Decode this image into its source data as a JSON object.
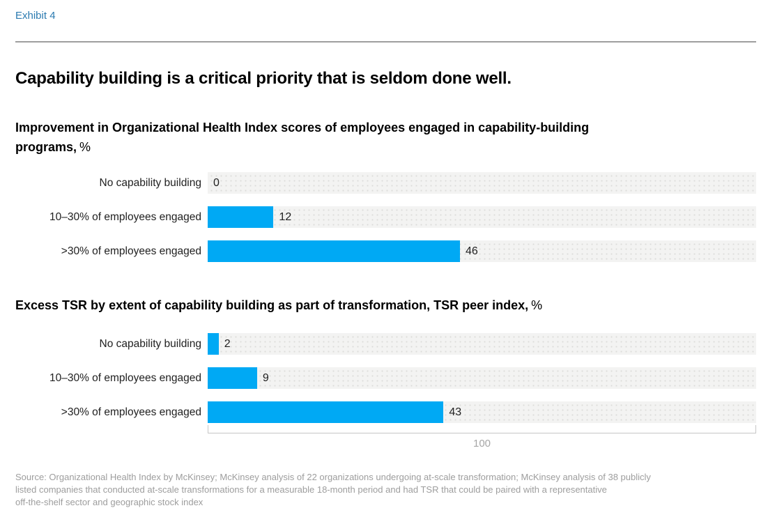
{
  "exhibit_label": "Exhibit 4",
  "title": "Capability building is a critical priority that is seldom done well.",
  "chart_data": [
    {
      "type": "bar",
      "orientation": "horizontal",
      "title": "Improvement in Organizational Health Index scores of employees engaged in capability-building programs, %",
      "heading": "Improvement in Organizational Health Index scores of employees engaged in capability-building\nprograms,",
      "unit": "%",
      "categories": [
        "No capability building",
        "10–30% of employees engaged",
        ">30% of employees engaged"
      ],
      "values": [
        0,
        12,
        46
      ],
      "xlim": [
        0,
        100
      ],
      "grid": false,
      "legend": "none"
    },
    {
      "type": "bar",
      "orientation": "horizontal",
      "title": "Excess TSR by extent of capability building as part of transformation, TSR peer index, %",
      "heading": "Excess TSR by extent of capability building as part of transformation, TSR peer index,",
      "unit": "%",
      "categories": [
        "No capability building",
        "10–30% of employees engaged",
        ">30% of employees engaged"
      ],
      "values": [
        2,
        9,
        43
      ],
      "xlim": [
        0,
        100
      ],
      "grid": false,
      "legend": "none"
    }
  ],
  "axis": {
    "end_label": "100"
  },
  "source": "Source: Organizational Health Index by McKinsey; McKinsey analysis of 22 organizations undergoing at-scale transformation; McKinsey analysis of 38 publicly\nlisted companies that conducted at-scale transformations for a measurable 18-month period and had TSR that could be paired with a representative\noff-the-shelf sector and geographic stock index",
  "colors": {
    "exhibit-blue": "#2a7ab0",
    "bar-blue": "#00a9f4",
    "track-gray": "#f3f3f2",
    "rule-gray": "#9e9e9e",
    "axis-gray": "#c6c6c6",
    "muted-text": "#9d9d9d"
  }
}
